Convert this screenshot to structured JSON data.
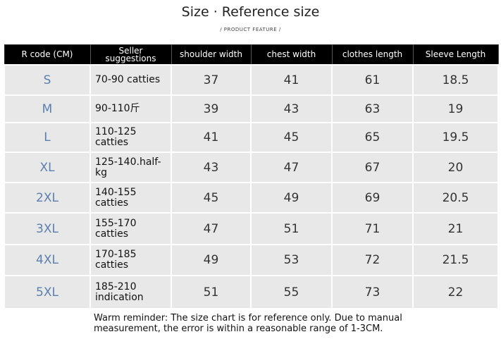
{
  "header": {
    "title": "Size · Reference size",
    "subtitle": "/ PRODUCT FEATURE /"
  },
  "table": {
    "columns": [
      "R code (CM)",
      "Seller suggestions",
      "shoulder width",
      "chest width",
      "clothes length",
      "Sleeve Length"
    ],
    "rows": [
      [
        "S",
        "70-90 catties",
        "37",
        "41",
        "61",
        "18.5"
      ],
      [
        "M",
        "90-110斤",
        "39",
        "43",
        "63",
        "19"
      ],
      [
        "L",
        "110-125 catties",
        "41",
        "45",
        "65",
        "19.5"
      ],
      [
        "XL",
        "125-140.half-kg",
        "43",
        "47",
        "67",
        "20"
      ],
      [
        "2XL",
        "140-155 catties",
        "45",
        "49",
        "69",
        "20.5"
      ],
      [
        "3XL",
        "155-170 catties",
        "47",
        "51",
        "71",
        "21"
      ],
      [
        "4XL",
        "170-185 catties",
        "49",
        "53",
        "72",
        "21.5"
      ],
      [
        "5XL",
        "185-210 indication",
        "51",
        "55",
        "73",
        "22"
      ]
    ]
  },
  "footer": {
    "note": "Warm reminder: The size chart is for reference only. Due to manual measurement, the error is within a reasonable range of 1-3CM."
  }
}
